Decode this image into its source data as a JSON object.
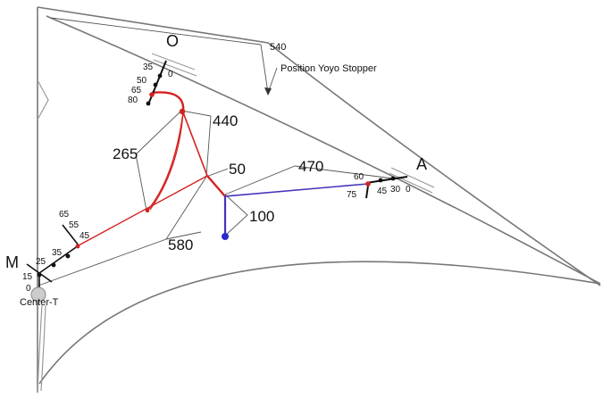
{
  "points": {
    "o": "O",
    "a": "A",
    "m": "M",
    "center": "Center-T"
  },
  "measurements": {
    "m540": "540",
    "m440": "440",
    "m265": "265",
    "m50": "50",
    "m470": "470",
    "m100": "100",
    "m580": "580"
  },
  "annotation": {
    "yoyo": "Position Yoyo Stopper"
  },
  "scales": {
    "o": [
      "35",
      "0",
      "50",
      "65",
      "80"
    ],
    "a": [
      "60",
      "75",
      "45",
      "30",
      "0"
    ],
    "m": [
      "65",
      "55",
      "45",
      "35",
      "25",
      "15",
      "0"
    ]
  },
  "colors": {
    "red": "#d42020",
    "blue": "#4433bb",
    "black": "#111111",
    "frame": "#777777",
    "hub": "#cccccc"
  }
}
